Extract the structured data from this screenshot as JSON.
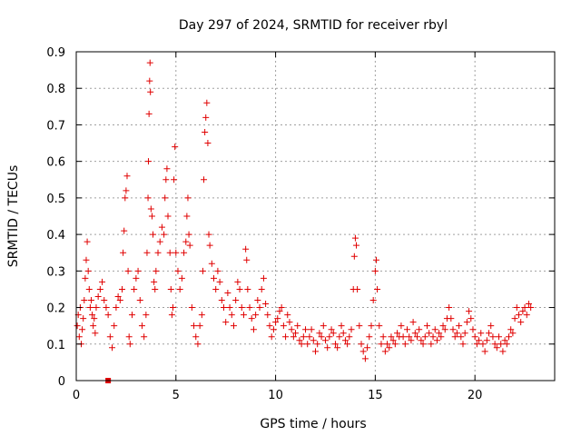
{
  "chart_data": {
    "type": "scatter",
    "title": "Day 297 of 2024, SRMTID for receiver rbyl",
    "xlabel": "GPS time / hours",
    "ylabel": "SRMTID / TECUs",
    "xlim": [
      0,
      24
    ],
    "ylim": [
      0,
      0.9
    ],
    "xticks": [
      0,
      5,
      10,
      15,
      20
    ],
    "yticks": [
      0,
      0.1,
      0.2,
      0.3,
      0.4,
      0.5,
      0.6,
      0.7,
      0.8,
      0.9
    ],
    "grid": true,
    "marker": "plus",
    "color": "#e00000",
    "outlier": {
      "x": 1.6,
      "y": 0.0
    },
    "series": [
      {
        "name": "SRMTID",
        "points": [
          [
            0.05,
            0.15
          ],
          [
            0.1,
            0.18
          ],
          [
            0.15,
            0.12
          ],
          [
            0.2,
            0.2
          ],
          [
            0.25,
            0.1
          ],
          [
            0.3,
            0.14
          ],
          [
            0.35,
            0.17
          ],
          [
            0.4,
            0.22
          ],
          [
            0.45,
            0.28
          ],
          [
            0.5,
            0.33
          ],
          [
            0.55,
            0.38
          ],
          [
            0.6,
            0.3
          ],
          [
            0.65,
            0.25
          ],
          [
            0.7,
            0.2
          ],
          [
            0.75,
            0.22
          ],
          [
            0.8,
            0.18
          ],
          [
            0.85,
            0.15
          ],
          [
            0.9,
            0.17
          ],
          [
            0.95,
            0.13
          ],
          [
            1.0,
            0.2
          ],
          [
            1.1,
            0.23
          ],
          [
            1.2,
            0.25
          ],
          [
            1.3,
            0.27
          ],
          [
            1.4,
            0.22
          ],
          [
            1.5,
            0.2
          ],
          [
            1.6,
            0.18
          ],
          [
            1.7,
            0.12
          ],
          [
            1.8,
            0.09
          ],
          [
            1.9,
            0.15
          ],
          [
            2.0,
            0.2
          ],
          [
            2.1,
            0.23
          ],
          [
            2.2,
            0.22
          ],
          [
            2.3,
            0.25
          ],
          [
            2.35,
            0.35
          ],
          [
            2.4,
            0.41
          ],
          [
            2.45,
            0.5
          ],
          [
            2.5,
            0.52
          ],
          [
            2.55,
            0.56
          ],
          [
            2.6,
            0.3
          ],
          [
            2.65,
            0.12
          ],
          [
            2.7,
            0.1
          ],
          [
            2.8,
            0.18
          ],
          [
            2.9,
            0.25
          ],
          [
            3.0,
            0.28
          ],
          [
            3.1,
            0.3
          ],
          [
            3.2,
            0.22
          ],
          [
            3.3,
            0.15
          ],
          [
            3.4,
            0.12
          ],
          [
            3.5,
            0.18
          ],
          [
            3.55,
            0.35
          ],
          [
            3.6,
            0.5
          ],
          [
            3.62,
            0.6
          ],
          [
            3.65,
            0.73
          ],
          [
            3.68,
            0.82
          ],
          [
            3.7,
            0.87
          ],
          [
            3.72,
            0.79
          ],
          [
            3.75,
            0.47
          ],
          [
            3.8,
            0.45
          ],
          [
            3.85,
            0.4
          ],
          [
            3.9,
            0.27
          ],
          [
            3.95,
            0.25
          ],
          [
            4.0,
            0.3
          ],
          [
            4.1,
            0.35
          ],
          [
            4.2,
            0.38
          ],
          [
            4.3,
            0.42
          ],
          [
            4.4,
            0.4
          ],
          [
            4.45,
            0.5
          ],
          [
            4.5,
            0.55
          ],
          [
            4.55,
            0.58
          ],
          [
            4.6,
            0.45
          ],
          [
            4.7,
            0.35
          ],
          [
            4.75,
            0.25
          ],
          [
            4.8,
            0.18
          ],
          [
            4.85,
            0.2
          ],
          [
            4.9,
            0.55
          ],
          [
            4.95,
            0.64
          ],
          [
            5.0,
            0.35
          ],
          [
            5.1,
            0.3
          ],
          [
            5.2,
            0.25
          ],
          [
            5.3,
            0.28
          ],
          [
            5.4,
            0.35
          ],
          [
            5.5,
            0.38
          ],
          [
            5.55,
            0.45
          ],
          [
            5.6,
            0.5
          ],
          [
            5.65,
            0.4
          ],
          [
            5.7,
            0.37
          ],
          [
            5.8,
            0.2
          ],
          [
            5.9,
            0.15
          ],
          [
            6.0,
            0.12
          ],
          [
            6.1,
            0.1
          ],
          [
            6.2,
            0.15
          ],
          [
            6.3,
            0.18
          ],
          [
            6.35,
            0.3
          ],
          [
            6.4,
            0.55
          ],
          [
            6.45,
            0.68
          ],
          [
            6.5,
            0.72
          ],
          [
            6.55,
            0.76
          ],
          [
            6.6,
            0.65
          ],
          [
            6.65,
            0.4
          ],
          [
            6.7,
            0.37
          ],
          [
            6.8,
            0.32
          ],
          [
            6.9,
            0.28
          ],
          [
            7.0,
            0.25
          ],
          [
            7.1,
            0.3
          ],
          [
            7.2,
            0.27
          ],
          [
            7.3,
            0.22
          ],
          [
            7.4,
            0.2
          ],
          [
            7.5,
            0.16
          ],
          [
            7.6,
            0.24
          ],
          [
            7.7,
            0.2
          ],
          [
            7.8,
            0.18
          ],
          [
            7.9,
            0.15
          ],
          [
            8.0,
            0.22
          ],
          [
            8.1,
            0.27
          ],
          [
            8.2,
            0.25
          ],
          [
            8.3,
            0.2
          ],
          [
            8.4,
            0.18
          ],
          [
            8.5,
            0.36
          ],
          [
            8.55,
            0.33
          ],
          [
            8.6,
            0.25
          ],
          [
            8.7,
            0.2
          ],
          [
            8.8,
            0.17
          ],
          [
            8.9,
            0.14
          ],
          [
            9.0,
            0.18
          ],
          [
            9.1,
            0.22
          ],
          [
            9.2,
            0.2
          ],
          [
            9.3,
            0.25
          ],
          [
            9.4,
            0.28
          ],
          [
            9.5,
            0.21
          ],
          [
            9.6,
            0.18
          ],
          [
            9.7,
            0.15
          ],
          [
            9.8,
            0.12
          ],
          [
            9.9,
            0.14
          ],
          [
            10.0,
            0.16
          ],
          [
            10.1,
            0.17
          ],
          [
            10.2,
            0.19
          ],
          [
            10.3,
            0.2
          ],
          [
            10.4,
            0.15
          ],
          [
            10.5,
            0.12
          ],
          [
            10.6,
            0.18
          ],
          [
            10.7,
            0.16
          ],
          [
            10.8,
            0.14
          ],
          [
            10.9,
            0.12
          ],
          [
            11.0,
            0.13
          ],
          [
            11.1,
            0.15
          ],
          [
            11.2,
            0.11
          ],
          [
            11.3,
            0.1
          ],
          [
            11.4,
            0.12
          ],
          [
            11.5,
            0.14
          ],
          [
            11.6,
            0.1
          ],
          [
            11.7,
            0.12
          ],
          [
            11.8,
            0.14
          ],
          [
            11.9,
            0.11
          ],
          [
            12.0,
            0.08
          ],
          [
            12.1,
            0.1
          ],
          [
            12.2,
            0.13
          ],
          [
            12.3,
            0.12
          ],
          [
            12.4,
            0.15
          ],
          [
            12.5,
            0.11
          ],
          [
            12.6,
            0.09
          ],
          [
            12.7,
            0.12
          ],
          [
            12.8,
            0.14
          ],
          [
            12.9,
            0.13
          ],
          [
            13.0,
            0.1
          ],
          [
            13.1,
            0.09
          ],
          [
            13.2,
            0.12
          ],
          [
            13.3,
            0.15
          ],
          [
            13.4,
            0.13
          ],
          [
            13.5,
            0.11
          ],
          [
            13.6,
            0.1
          ],
          [
            13.7,
            0.12
          ],
          [
            13.8,
            0.14
          ],
          [
            13.9,
            0.25
          ],
          [
            13.95,
            0.34
          ],
          [
            14.0,
            0.39
          ],
          [
            14.05,
            0.37
          ],
          [
            14.1,
            0.25
          ],
          [
            14.2,
            0.15
          ],
          [
            14.3,
            0.1
          ],
          [
            14.4,
            0.08
          ],
          [
            14.5,
            0.06
          ],
          [
            14.6,
            0.09
          ],
          [
            14.7,
            0.12
          ],
          [
            14.8,
            0.15
          ],
          [
            14.9,
            0.22
          ],
          [
            15.0,
            0.3
          ],
          [
            15.05,
            0.33
          ],
          [
            15.1,
            0.25
          ],
          [
            15.2,
            0.15
          ],
          [
            15.3,
            0.1
          ],
          [
            15.4,
            0.12
          ],
          [
            15.5,
            0.08
          ],
          [
            15.6,
            0.1
          ],
          [
            15.7,
            0.09
          ],
          [
            15.8,
            0.12
          ],
          [
            15.9,
            0.11
          ],
          [
            16.0,
            0.1
          ],
          [
            16.1,
            0.13
          ],
          [
            16.2,
            0.12
          ],
          [
            16.3,
            0.15
          ],
          [
            16.4,
            0.12
          ],
          [
            16.5,
            0.1
          ],
          [
            16.6,
            0.14
          ],
          [
            16.7,
            0.12
          ],
          [
            16.8,
            0.11
          ],
          [
            16.9,
            0.16
          ],
          [
            17.0,
            0.13
          ],
          [
            17.1,
            0.12
          ],
          [
            17.2,
            0.14
          ],
          [
            17.3,
            0.11
          ],
          [
            17.4,
            0.1
          ],
          [
            17.5,
            0.12
          ],
          [
            17.6,
            0.15
          ],
          [
            17.7,
            0.13
          ],
          [
            17.8,
            0.1
          ],
          [
            17.9,
            0.12
          ],
          [
            18.0,
            0.14
          ],
          [
            18.1,
            0.11
          ],
          [
            18.2,
            0.13
          ],
          [
            18.3,
            0.12
          ],
          [
            18.4,
            0.15
          ],
          [
            18.5,
            0.14
          ],
          [
            18.6,
            0.17
          ],
          [
            18.7,
            0.2
          ],
          [
            18.8,
            0.17
          ],
          [
            18.9,
            0.14
          ],
          [
            19.0,
            0.12
          ],
          [
            19.1,
            0.13
          ],
          [
            19.2,
            0.15
          ],
          [
            19.3,
            0.12
          ],
          [
            19.4,
            0.1
          ],
          [
            19.5,
            0.13
          ],
          [
            19.6,
            0.16
          ],
          [
            19.7,
            0.19
          ],
          [
            19.8,
            0.17
          ],
          [
            19.9,
            0.14
          ],
          [
            20.0,
            0.12
          ],
          [
            20.1,
            0.1
          ],
          [
            20.2,
            0.11
          ],
          [
            20.3,
            0.13
          ],
          [
            20.4,
            0.1
          ],
          [
            20.5,
            0.08
          ],
          [
            20.6,
            0.11
          ],
          [
            20.7,
            0.13
          ],
          [
            20.8,
            0.15
          ],
          [
            20.9,
            0.12
          ],
          [
            21.0,
            0.1
          ],
          [
            21.1,
            0.09
          ],
          [
            21.2,
            0.12
          ],
          [
            21.3,
            0.1
          ],
          [
            21.4,
            0.08
          ],
          [
            21.5,
            0.11
          ],
          [
            21.6,
            0.1
          ],
          [
            21.7,
            0.12
          ],
          [
            21.8,
            0.14
          ],
          [
            21.9,
            0.13
          ],
          [
            22.0,
            0.17
          ],
          [
            22.1,
            0.2
          ],
          [
            22.2,
            0.18
          ],
          [
            22.3,
            0.16
          ],
          [
            22.4,
            0.19
          ],
          [
            22.5,
            0.2
          ],
          [
            22.6,
            0.18
          ],
          [
            22.7,
            0.21
          ],
          [
            22.8,
            0.2
          ]
        ]
      }
    ]
  }
}
